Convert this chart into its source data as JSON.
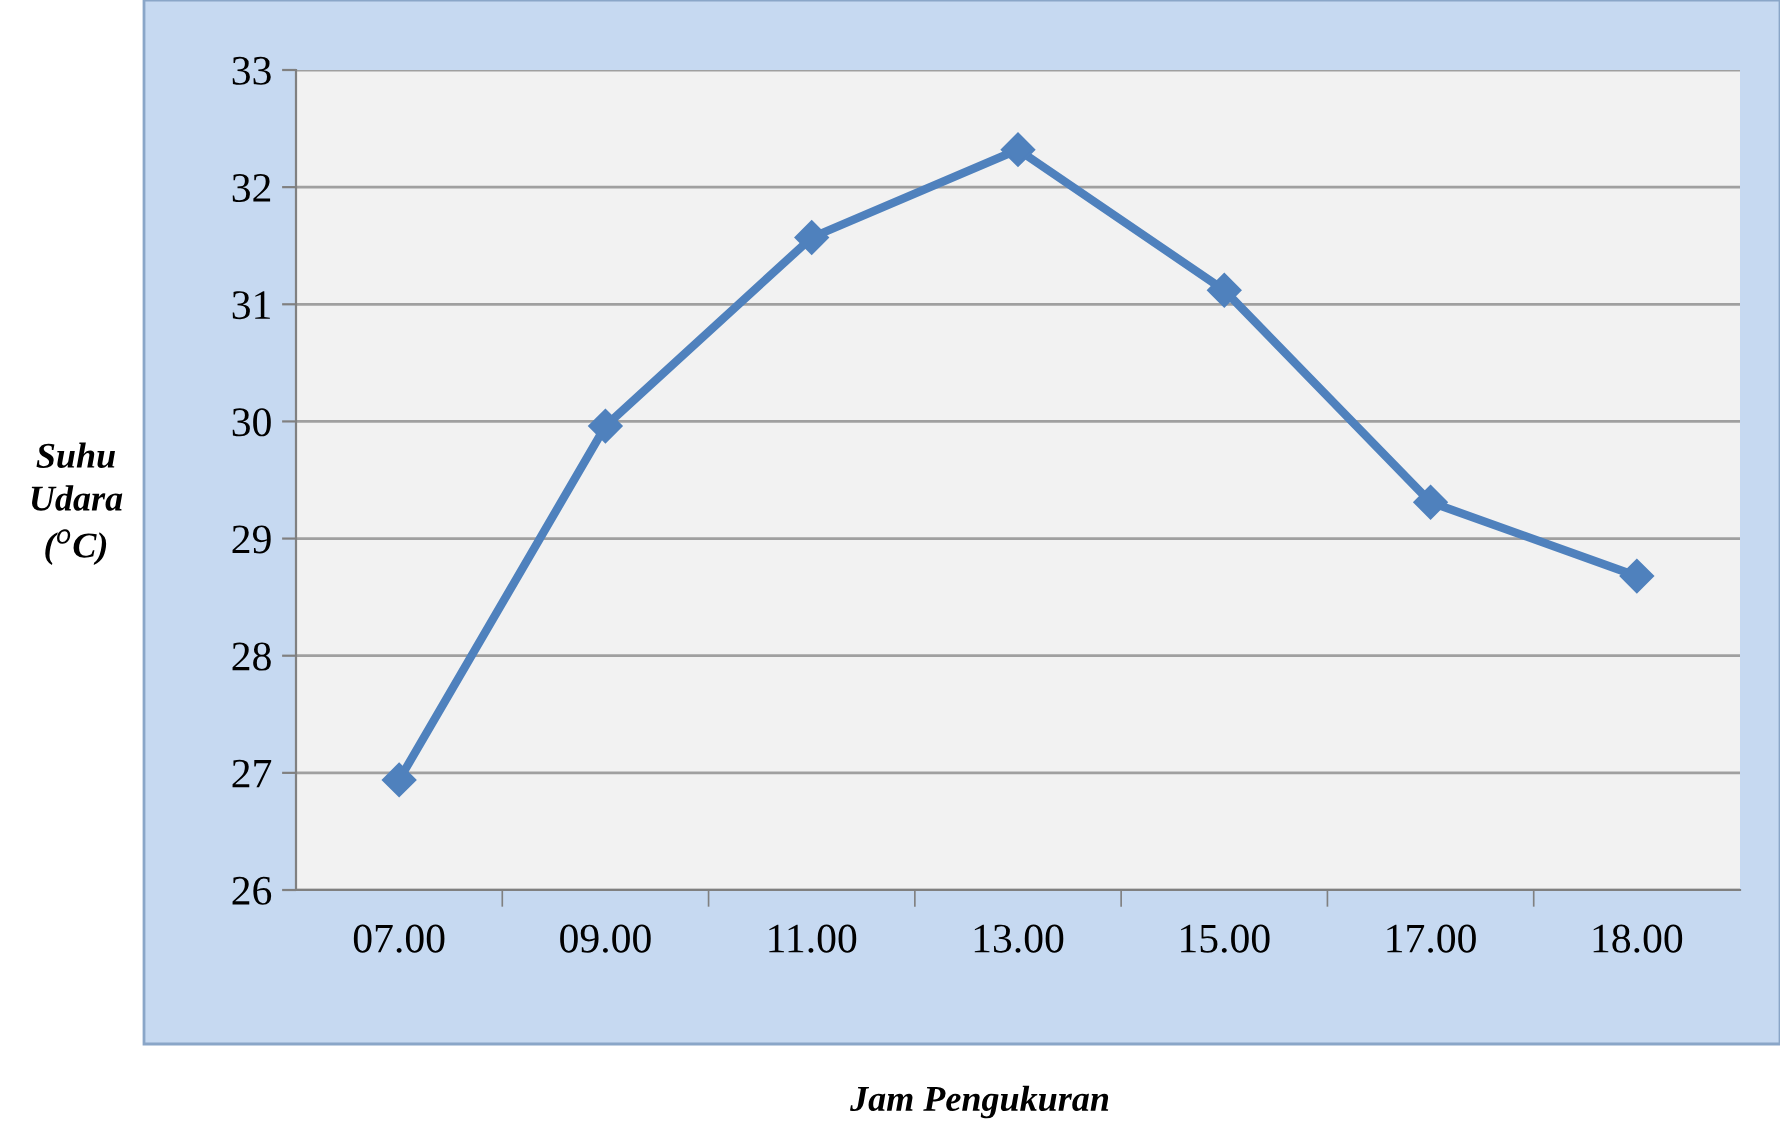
{
  "chart_data": {
    "type": "line",
    "xlabel": "Jam Pengukuran",
    "ylabel": "Suhu\nUdara\n($^{o}$C)",
    "categories": [
      "07.00",
      "09.00",
      "11.00",
      "13.00",
      "15.00",
      "17.00",
      "18.00"
    ],
    "series": [
      {
        "color": "#4f81bd",
        "values": [
          26.94,
          29.96,
          31.57,
          32.32,
          31.12,
          29.31,
          28.68
        ]
      }
    ],
    "ylim": [
      26,
      33
    ],
    "yticks": [
      26,
      27,
      28,
      29,
      30,
      31,
      32,
      33
    ],
    "grid": "y",
    "marker": "diamond",
    "line_style": "solid",
    "legend": false
  }
}
